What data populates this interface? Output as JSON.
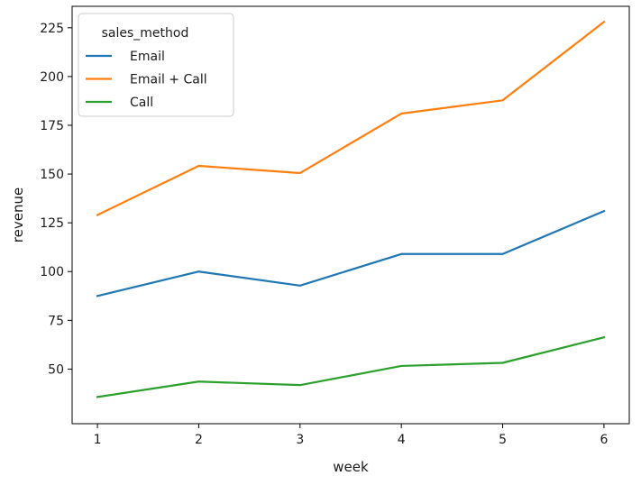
{
  "chart_data": {
    "type": "line",
    "xlabel": "week",
    "ylabel": "revenue",
    "x": [
      1,
      2,
      3,
      4,
      5,
      6
    ],
    "xlim": [
      0.75,
      6.25
    ],
    "ylim": [
      22,
      236
    ],
    "yticks": [
      50,
      75,
      100,
      125,
      150,
      175,
      200,
      225
    ],
    "grid": false,
    "legend": {
      "title": "sales_method",
      "location": "top-left"
    },
    "series": [
      {
        "name": "Email",
        "color": "#1f77b4",
        "values": [
          87.5,
          100.0,
          92.8,
          109.0,
          109.0,
          131.0
        ]
      },
      {
        "name": "Email + Call",
        "color": "#ff7f0e",
        "values": [
          129.0,
          154.2,
          150.5,
          181.0,
          187.8,
          228.0
        ]
      },
      {
        "name": "Call",
        "color": "#2ca02c",
        "values": [
          35.7,
          43.6,
          41.8,
          51.6,
          53.2,
          66.3
        ]
      }
    ]
  }
}
